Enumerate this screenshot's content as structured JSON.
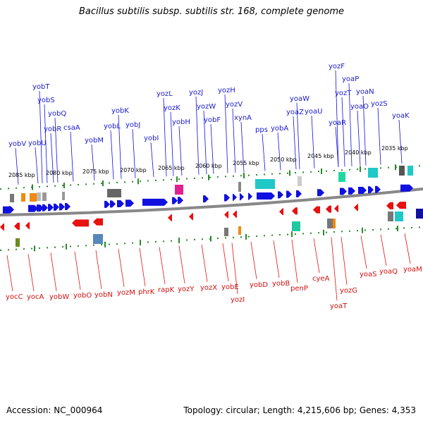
{
  "title": "Bacillus subtilis subsp. subtilis str. 168, complete genome",
  "footer": {
    "accession": "Accession: NC_000964",
    "summary": "Topology: circular; Length: 4,215,606 bp; Genes: 4,353"
  },
  "colors": {
    "forward": "#1010e0",
    "reverse": "#e81010",
    "backbone": "#888888",
    "ticks": "#2a8a2a"
  },
  "scale_labels": [
    "2085 kbp",
    "2080 kbp",
    "2075 kbp",
    "2070 kbp",
    "2065 kbp",
    "2060 kbp",
    "2055 kbp",
    "2050 kbp",
    "2045 kbp",
    "2040 kbp",
    "2035 kbp"
  ],
  "top_genes": [
    "yobV",
    "yobU",
    "yobT",
    "yobS",
    "yobR",
    "yobQ",
    "csaA",
    "yobM",
    "yobL",
    "yobK",
    "yobJ",
    "yobI",
    "yozL",
    "yozK",
    "yobH",
    "yozJ",
    "yozW",
    "yobF",
    "yozH",
    "yozV",
    "xynA",
    "pps",
    "yobA",
    "yoaZ",
    "yoaW",
    "yoaU",
    "yoaR",
    "yozT",
    "yozF",
    "yoaP",
    "yoaO",
    "yoaN",
    "yozS",
    "yoaK"
  ],
  "bottom_genes": [
    "yocC",
    "yocA",
    "yobW",
    "yobO",
    "yobN",
    "yozM",
    "phrK",
    "rapK",
    "yozY",
    "yozX",
    "yobE",
    "yozI",
    "yobD",
    "yobB",
    "penP",
    "cyeA",
    "yoaT",
    "yozG",
    "yoaS",
    "yoaQ",
    "yoaM"
  ]
}
